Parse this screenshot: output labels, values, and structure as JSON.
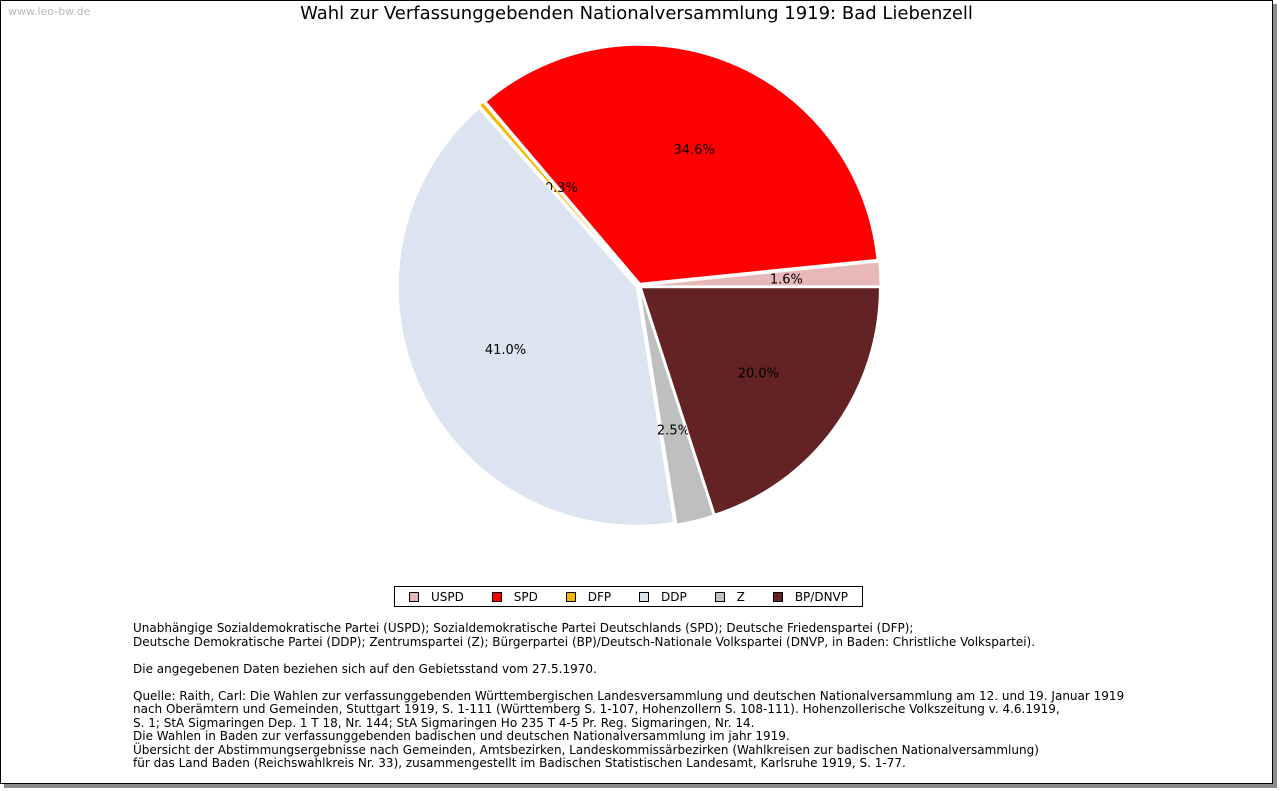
{
  "watermark": "www.leo-bw.de",
  "chart_data": {
    "type": "pie",
    "title": "Wahl zur Verfassunggebenden Nationalversammlung 1919: Bad Liebenzell",
    "start_angle_deg": 0,
    "direction": "counterclockwise",
    "slices": [
      {
        "label": "USPD",
        "value": 1.6,
        "display": "1.6%",
        "color": "#e8b8b8"
      },
      {
        "label": "SPD",
        "value": 34.6,
        "display": "34.6%",
        "color": "#ff0000"
      },
      {
        "label": "DFP",
        "value": 0.3,
        "display": "0.3%",
        "color": "#f5b800"
      },
      {
        "label": "DDP",
        "value": 41.0,
        "display": "41.0%",
        "color": "#dbe4f0"
      },
      {
        "label": "Z",
        "value": 2.5,
        "display": "2.5%",
        "color": "#bfbfbf"
      },
      {
        "label": "BP/DNVP",
        "value": 20.0,
        "display": "20.0%",
        "color": "#632223"
      }
    ],
    "legend_position": "bottom"
  },
  "notes": {
    "parties_line1": "Unabhängige Sozialdemokratische Partei (USPD); Sozialdemokratische Partei Deutschlands (SPD); Deutsche Friedenspartei (DFP);",
    "parties_line2": "Deutsche Demokratische Partei (DDP); Zentrumspartei (Z); Bürgerpartei (BP)/Deutsch-Nationale Volkspartei (DNVP, in Baden: Christliche Volkspartei).",
    "territory": "Die angegebenen Daten beziehen sich auf den Gebietsstand vom 27.5.1970.",
    "source_lines": [
      "Quelle: Raith, Carl: Die Wahlen zur verfassunggebenden Württembergischen Landesversammlung und deutschen Nationalversammlung am 12. und 19. Januar 1919",
      "nach Oberämtern und Gemeinden, Stuttgart 1919, S. 1-111 (Württemberg S. 1-107, Hohenzollern S. 108-111). Hohenzollerische Volkszeitung v. 4.6.1919,",
      "S. 1; StA Sigmaringen Dep. 1 T 18, Nr. 144; StA Sigmaringen Ho 235 T 4-5 Pr. Reg. Sigmaringen, Nr. 14.",
      "Die Wahlen in Baden zur verfassunggebenden badischen und deutschen Nationalversammlung im jahr 1919.",
      "Übersicht der Abstimmungsergebnisse nach Gemeinden, Amtsbezirken, Landeskommissärbezirken (Wahlkreisen zur badischen Nationalversammlung)",
      "für das Land Baden (Reichswahlkreis Nr. 33), zusammengestellt im Badischen Statistischen Landesamt, Karlsruhe 1919, S. 1-77."
    ]
  }
}
